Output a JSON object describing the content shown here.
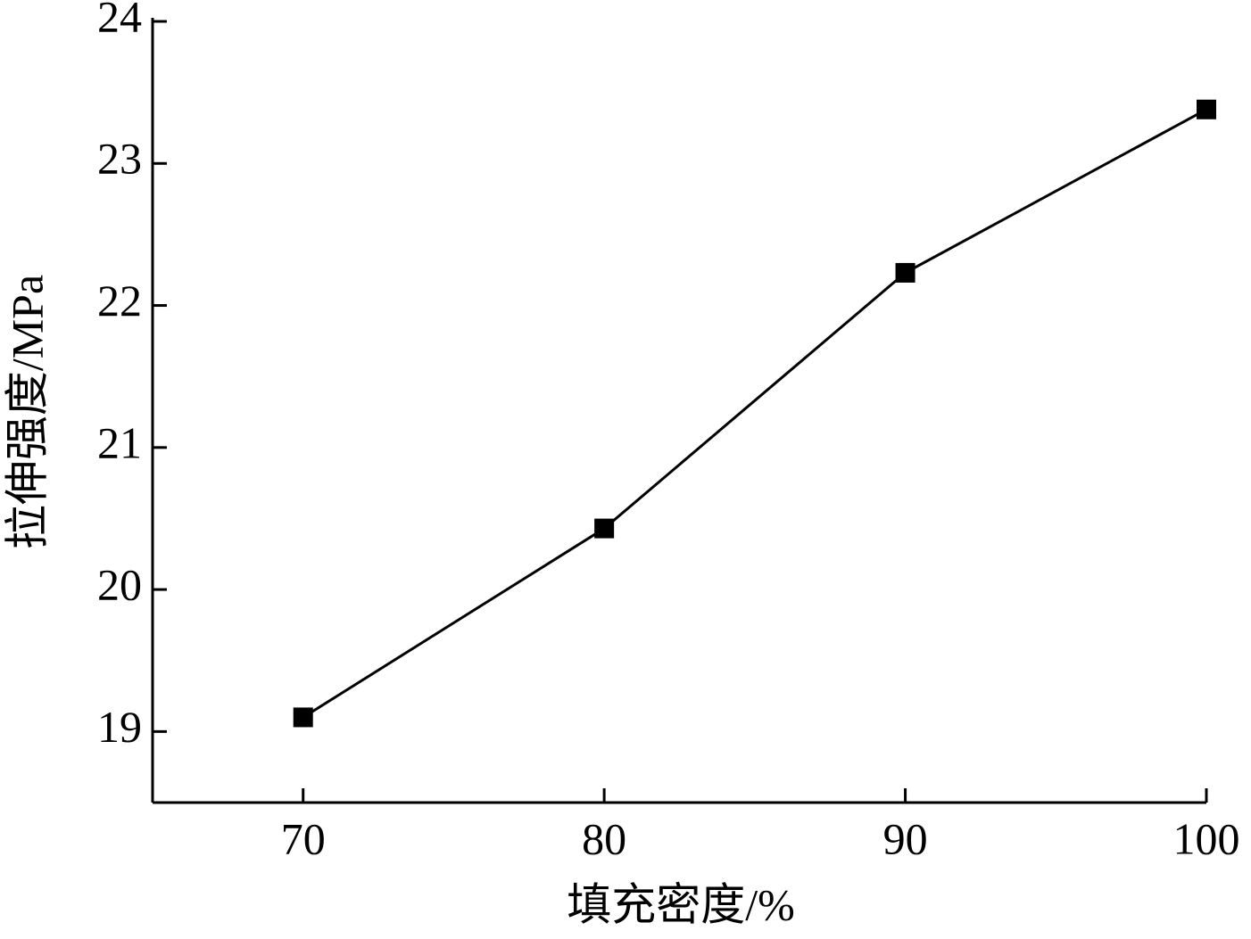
{
  "chart_data": {
    "type": "line",
    "x_label": "填充密度/%",
    "y_label": "拉伸强度/MPa",
    "x": [
      70,
      80,
      90,
      100
    ],
    "series": [
      {
        "color": "#000000",
        "values": [
          19.1,
          20.43,
          22.23,
          23.38
        ]
      }
    ],
    "xlim": [
      65,
      100
    ],
    "xticks": [
      70,
      80,
      90,
      100
    ],
    "ylim": [
      18.5,
      24
    ],
    "yticks": [
      19,
      20,
      21,
      22,
      23,
      24
    ],
    "marker": "square",
    "grid": false
  }
}
